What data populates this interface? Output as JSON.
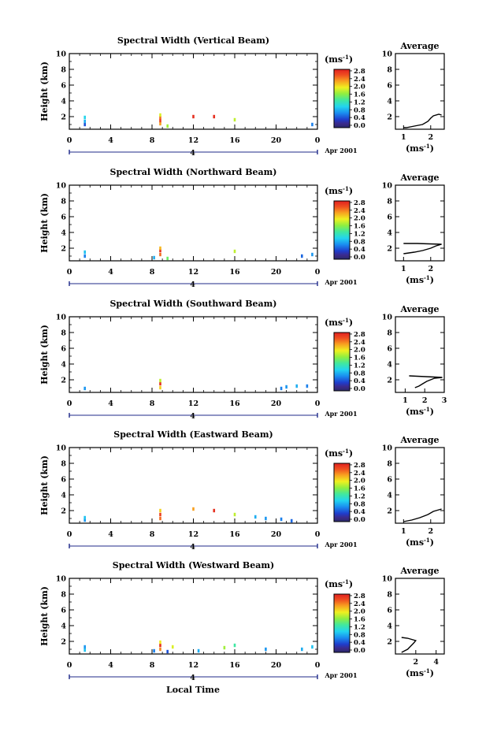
{
  "figure": {
    "local_time_label": "Local Time",
    "date_label": "Apr 2001",
    "day_marker": "4",
    "colorbar_unit_base": "(ms",
    "colorbar_unit_exp": "-1",
    "colorbar_unit_close": ")",
    "colorbar_ticks": [
      "0.0",
      "0.4",
      "0.8",
      "1.2",
      "1.6",
      "2.0",
      "2.4",
      "2.8"
    ],
    "average_title": "Average",
    "height_label": "Height (km)"
  },
  "chart_data": [
    {
      "type": "heatmap",
      "title": "Spectral Width (Vertical Beam)",
      "ylabel": "Height (km)",
      "xlim": [
        0,
        24
      ],
      "ylim": [
        0.4,
        10
      ],
      "xticks": [
        "0",
        "4",
        "8",
        "12",
        "16",
        "20",
        "0"
      ],
      "yticks": [
        "2",
        "4",
        "6",
        "8",
        "10"
      ],
      "colorbar": {
        "vmin": 0.0,
        "vmax": 3.0
      },
      "cells": [
        {
          "t": 1.5,
          "h": 1.0,
          "v": 0.5
        },
        {
          "t": 1.5,
          "h": 1.4,
          "v": 0.9
        },
        {
          "t": 1.5,
          "h": 1.9,
          "v": 1.1
        },
        {
          "t": 8.8,
          "h": 1.1,
          "v": 2.4
        },
        {
          "t": 8.8,
          "h": 1.5,
          "v": 2.8
        },
        {
          "t": 8.8,
          "h": 1.9,
          "v": 2.6
        },
        {
          "t": 8.8,
          "h": 2.2,
          "v": 2.0
        },
        {
          "t": 9.5,
          "h": 0.8,
          "v": 1.8
        },
        {
          "t": 12.0,
          "h": 2.0,
          "v": 2.9
        },
        {
          "t": 14.0,
          "h": 2.0,
          "v": 2.9
        },
        {
          "t": 16.0,
          "h": 1.6,
          "v": 1.9
        },
        {
          "t": 23.5,
          "h": 1.0,
          "v": 0.7
        }
      ],
      "avg_profile": {
        "xlim": [
          0.7,
          2.5
        ],
        "xticks": [
          "1",
          "2"
        ],
        "xlabel": "(ms-1)",
        "points": [
          [
            1.0,
            0.6
          ],
          [
            1.1,
            0.6
          ],
          [
            1.4,
            0.8
          ],
          [
            1.7,
            1.0
          ],
          [
            1.9,
            1.4
          ],
          [
            2.0,
            1.8
          ],
          [
            2.1,
            2.1
          ],
          [
            2.3,
            2.3
          ],
          [
            2.4,
            2.2
          ]
        ]
      }
    },
    {
      "type": "heatmap",
      "title": "Spectral Width (Northward Beam)",
      "ylabel": "Height (km)",
      "xlim": [
        0,
        24
      ],
      "ylim": [
        0.4,
        10
      ],
      "xticks": [
        "0",
        "4",
        "8",
        "12",
        "16",
        "20",
        "0"
      ],
      "yticks": [
        "2",
        "4",
        "6",
        "8",
        "10"
      ],
      "colorbar": {
        "vmin": 0.0,
        "vmax": 3.0
      },
      "cells": [
        {
          "t": 1.5,
          "h": 1.0,
          "v": 0.7
        },
        {
          "t": 1.5,
          "h": 1.5,
          "v": 1.0
        },
        {
          "t": 8.2,
          "h": 0.8,
          "v": 0.9
        },
        {
          "t": 8.8,
          "h": 1.2,
          "v": 2.6
        },
        {
          "t": 8.8,
          "h": 1.7,
          "v": 2.9
        },
        {
          "t": 8.8,
          "h": 2.0,
          "v": 2.3
        },
        {
          "t": 9.5,
          "h": 0.7,
          "v": 1.6
        },
        {
          "t": 16.0,
          "h": 1.6,
          "v": 1.9
        },
        {
          "t": 22.5,
          "h": 1.0,
          "v": 0.6
        },
        {
          "t": 23.5,
          "h": 1.2,
          "v": 0.8
        }
      ],
      "avg_profile": {
        "xlim": [
          0.7,
          2.5
        ],
        "xticks": [
          "1",
          "2"
        ],
        "xlabel": "(ms-1)",
        "points": [
          [
            1.0,
            1.3
          ],
          [
            1.4,
            1.5
          ],
          [
            1.7,
            1.7
          ],
          [
            2.0,
            2.0
          ],
          [
            2.2,
            2.3
          ],
          [
            2.4,
            2.5
          ],
          [
            1.5,
            2.6
          ],
          [
            1.0,
            2.6
          ]
        ]
      }
    },
    {
      "type": "heatmap",
      "title": "Spectral Width (Southward Beam)",
      "ylabel": "Height (km)",
      "xlim": [
        0,
        24
      ],
      "ylim": [
        0.4,
        10
      ],
      "xticks": [
        "0",
        "4",
        "8",
        "12",
        "16",
        "20",
        "0"
      ],
      "yticks": [
        "2",
        "4",
        "6",
        "8",
        "10"
      ],
      "colorbar": {
        "vmin": 0.0,
        "vmax": 3.0
      },
      "cells": [
        {
          "t": 1.5,
          "h": 0.9,
          "v": 0.8
        },
        {
          "t": 8.8,
          "h": 1.0,
          "v": 2.2
        },
        {
          "t": 8.8,
          "h": 1.5,
          "v": 2.9
        },
        {
          "t": 8.8,
          "h": 1.9,
          "v": 1.9
        },
        {
          "t": 20.5,
          "h": 0.9,
          "v": 0.7
        },
        {
          "t": 21.0,
          "h": 1.1,
          "v": 0.8
        },
        {
          "t": 22.0,
          "h": 1.2,
          "v": 0.9
        },
        {
          "t": 23.0,
          "h": 1.2,
          "v": 0.7
        }
      ],
      "avg_profile": {
        "xlim": [
          0.5,
          3.0
        ],
        "xticks": [
          "1",
          "2",
          "3"
        ],
        "xlabel": "(ms-1)",
        "points": [
          [
            1.5,
            1.0
          ],
          [
            1.7,
            1.2
          ],
          [
            1.9,
            1.5
          ],
          [
            2.1,
            1.8
          ],
          [
            2.5,
            2.2
          ],
          [
            2.9,
            2.3
          ],
          [
            1.2,
            2.5
          ]
        ]
      }
    },
    {
      "type": "heatmap",
      "title": "Spectral Width (Eastward Beam)",
      "ylabel": "Height (km)",
      "xlim": [
        0,
        24
      ],
      "ylim": [
        0.4,
        10
      ],
      "xticks": [
        "0",
        "4",
        "8",
        "12",
        "16",
        "20",
        "0"
      ],
      "yticks": [
        "2",
        "4",
        "6",
        "8",
        "10"
      ],
      "colorbar": {
        "vmin": 0.0,
        "vmax": 3.0
      },
      "cells": [
        {
          "t": 1.5,
          "h": 0.8,
          "v": 0.8
        },
        {
          "t": 1.5,
          "h": 1.1,
          "v": 1.0
        },
        {
          "t": 8.8,
          "h": 1.0,
          "v": 2.6
        },
        {
          "t": 8.8,
          "h": 1.5,
          "v": 2.8
        },
        {
          "t": 8.8,
          "h": 2.0,
          "v": 2.2
        },
        {
          "t": 12.0,
          "h": 2.2,
          "v": 2.4
        },
        {
          "t": 14.0,
          "h": 2.0,
          "v": 2.9
        },
        {
          "t": 16.0,
          "h": 1.5,
          "v": 1.9
        },
        {
          "t": 18.0,
          "h": 1.2,
          "v": 0.9
        },
        {
          "t": 19.0,
          "h": 1.0,
          "v": 0.8
        },
        {
          "t": 20.5,
          "h": 0.9,
          "v": 0.7
        },
        {
          "t": 21.5,
          "h": 0.7,
          "v": 0.6
        }
      ],
      "avg_profile": {
        "xlim": [
          0.7,
          2.5
        ],
        "xticks": [
          "1",
          "2"
        ],
        "xlabel": "(ms-1)",
        "points": [
          [
            1.0,
            0.6
          ],
          [
            1.3,
            0.8
          ],
          [
            1.6,
            1.1
          ],
          [
            1.9,
            1.5
          ],
          [
            2.1,
            1.9
          ],
          [
            2.3,
            2.1
          ],
          [
            2.4,
            2.2
          ]
        ]
      }
    },
    {
      "type": "heatmap",
      "title": "Spectral Width (Westward Beam)",
      "ylabel": "Height (km)",
      "xlim": [
        0,
        24
      ],
      "ylim": [
        0.4,
        10
      ],
      "xticks": [
        "0",
        "4",
        "8",
        "12",
        "16",
        "20",
        "0"
      ],
      "yticks": [
        "2",
        "4",
        "6",
        "8",
        "10"
      ],
      "colorbar": {
        "vmin": 0.0,
        "vmax": 3.0
      },
      "cells": [
        {
          "t": 1.5,
          "h": 0.9,
          "v": 1.0
        },
        {
          "t": 1.5,
          "h": 1.3,
          "v": 0.8
        },
        {
          "t": 8.2,
          "h": 0.8,
          "v": 0.7
        },
        {
          "t": 8.8,
          "h": 1.0,
          "v": 2.5
        },
        {
          "t": 8.8,
          "h": 1.5,
          "v": 2.9
        },
        {
          "t": 8.8,
          "h": 1.9,
          "v": 2.1
        },
        {
          "t": 9.5,
          "h": 0.7,
          "v": 0.5
        },
        {
          "t": 10.0,
          "h": 1.3,
          "v": 2.0
        },
        {
          "t": 12.5,
          "h": 0.8,
          "v": 0.9
        },
        {
          "t": 15.0,
          "h": 1.2,
          "v": 1.8
        },
        {
          "t": 16.0,
          "h": 1.5,
          "v": 1.4
        },
        {
          "t": 19.0,
          "h": 1.0,
          "v": 0.8
        },
        {
          "t": 22.5,
          "h": 1.0,
          "v": 0.9
        },
        {
          "t": 23.5,
          "h": 1.3,
          "v": 1.0
        }
      ],
      "avg_profile": {
        "xlim": [
          0.0,
          4.8
        ],
        "xticks": [
          "2",
          "4"
        ],
        "xlabel": "(ms-1)",
        "points": [
          [
            0.6,
            0.6
          ],
          [
            0.9,
            0.8
          ],
          [
            1.2,
            1.0
          ],
          [
            1.5,
            1.4
          ],
          [
            1.8,
            1.8
          ],
          [
            2.0,
            2.1
          ],
          [
            1.2,
            2.4
          ],
          [
            0.6,
            2.5
          ]
        ]
      }
    }
  ]
}
